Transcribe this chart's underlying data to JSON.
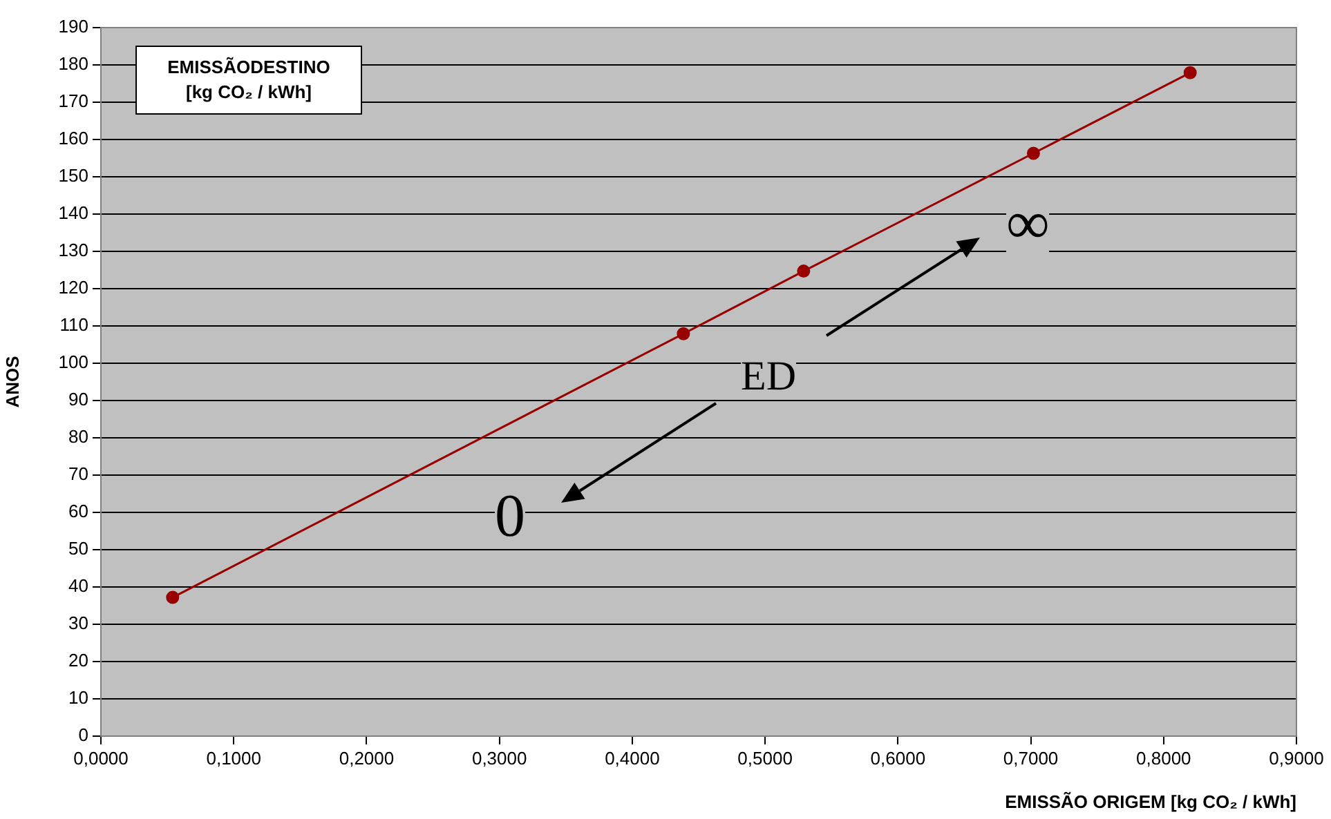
{
  "chart_data": {
    "type": "line",
    "xlabel": "EMISSÃO ORIGEM [kg CO₂ / kWh]",
    "ylabel": "ANOS",
    "annotations": [
      "EMISSÃODESTINO [kg CO₂ / kWh]",
      "ED",
      "∞",
      "0"
    ],
    "x": [
      0.054,
      0.4385,
      0.529,
      0.702,
      0.82
    ],
    "series": [
      {
        "color": "#990000",
        "values": [
          37.2,
          107.9,
          124.7,
          156.3,
          177.9
        ]
      }
    ],
    "xlim": [
      0,
      0.9
    ],
    "xticks": [
      {
        "value": 0,
        "label": "0,0000"
      },
      {
        "value": 0.1,
        "label": "0,1000"
      },
      {
        "value": 0.2,
        "label": "0,2000"
      },
      {
        "value": 0.3,
        "label": "0,3000"
      },
      {
        "value": 0.4,
        "label": "0,4000"
      },
      {
        "value": 0.5,
        "label": "0,5000"
      },
      {
        "value": 0.6,
        "label": "0,6000"
      },
      {
        "value": 0.7,
        "label": "0,7000"
      },
      {
        "value": 0.8,
        "label": "0,8000"
      },
      {
        "value": 0.9,
        "label": "0,9000"
      }
    ],
    "ylim": [
      0,
      190
    ],
    "yticks": [
      0,
      10,
      20,
      30,
      40,
      50,
      60,
      70,
      80,
      90,
      100,
      110,
      120,
      130,
      140,
      150,
      160,
      170,
      180,
      190
    ],
    "grid": "y",
    "marker": "circle",
    "line_style": "solid",
    "legend": false
  }
}
